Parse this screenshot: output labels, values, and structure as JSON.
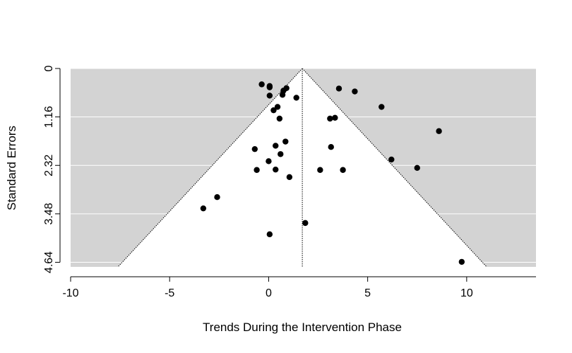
{
  "chart_data": {
    "type": "scatter",
    "title": "",
    "xlabel": "Trends During the Intervention Phase",
    "ylabel": "Standard Errors",
    "xlim": [
      -10,
      13.5
    ],
    "ylim": [
      0,
      4.75
    ],
    "y_reversed": true,
    "x_ticks": [
      -10,
      -5,
      0,
      5,
      10
    ],
    "x_tick_labels": [
      "-10",
      "-5",
      "0",
      "5",
      "10"
    ],
    "y_ticks": [
      0,
      1.16,
      2.32,
      3.48,
      4.64
    ],
    "y_tick_labels": [
      "0",
      "1.16",
      "2.32",
      "3.48",
      "4.64"
    ],
    "grid": "horizontal",
    "background_color": "#d3d3d3",
    "funnel_color": "#ffffff",
    "point_color": "#000000",
    "funnel_center": 1.7,
    "funnel_z": 1.96,
    "points": [
      {
        "x": -0.35,
        "y": 0.38
      },
      {
        "x": 0.05,
        "y": 0.42
      },
      {
        "x": 0.05,
        "y": 0.45
      },
      {
        "x": 0.9,
        "y": 0.47
      },
      {
        "x": 0.75,
        "y": 0.53
      },
      {
        "x": 0.7,
        "y": 0.63
      },
      {
        "x": 0.05,
        "y": 0.65
      },
      {
        "x": 1.4,
        "y": 0.7
      },
      {
        "x": 3.55,
        "y": 0.48
      },
      {
        "x": 4.35,
        "y": 0.55
      },
      {
        "x": 0.45,
        "y": 0.92
      },
      {
        "x": 0.25,
        "y": 1.0
      },
      {
        "x": 5.7,
        "y": 0.92
      },
      {
        "x": 0.55,
        "y": 1.2
      },
      {
        "x": 3.1,
        "y": 1.2
      },
      {
        "x": 3.35,
        "y": 1.18
      },
      {
        "x": 8.6,
        "y": 1.5
      },
      {
        "x": 0.85,
        "y": 1.75
      },
      {
        "x": 0.35,
        "y": 1.85
      },
      {
        "x": 3.15,
        "y": 1.88
      },
      {
        "x": -0.7,
        "y": 1.93
      },
      {
        "x": 0.6,
        "y": 2.05
      },
      {
        "x": 0.0,
        "y": 2.22
      },
      {
        "x": 6.2,
        "y": 2.18
      },
      {
        "x": -0.6,
        "y": 2.43
      },
      {
        "x": 0.35,
        "y": 2.42
      },
      {
        "x": 2.6,
        "y": 2.43
      },
      {
        "x": 3.75,
        "y": 2.43
      },
      {
        "x": 7.5,
        "y": 2.38
      },
      {
        "x": 1.05,
        "y": 2.6
      },
      {
        "x": -2.6,
        "y": 3.08
      },
      {
        "x": -3.3,
        "y": 3.35
      },
      {
        "x": 1.85,
        "y": 3.7
      },
      {
        "x": 0.05,
        "y": 3.97
      },
      {
        "x": 9.75,
        "y": 4.63
      }
    ]
  }
}
